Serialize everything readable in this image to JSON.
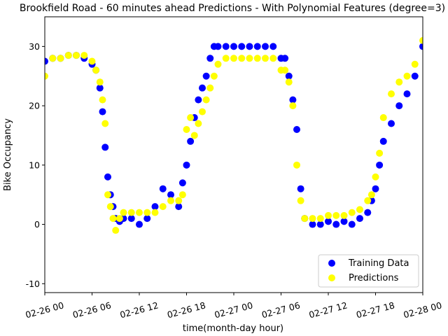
{
  "chart_data": {
    "type": "scatter",
    "title": "Brookfield Road - 60 minutes ahead Predictions - With Polynomial Features (degree=3)",
    "xlabel": "time(month-day hour)",
    "ylabel": "Bike Occupancy",
    "xlim": [
      "02-26 00",
      "02-28 00"
    ],
    "ylim": [
      -11.5,
      35
    ],
    "x_ticks": [
      "02-26 00",
      "02-26 06",
      "02-26 12",
      "02-26 18",
      "02-27 00",
      "02-27 06",
      "02-27 12",
      "02-27 18",
      "02-28 00"
    ],
    "y_ticks": [
      -10,
      0,
      10,
      20,
      30
    ],
    "legend_position": "lower-right",
    "colors": {
      "training": "#0000ff",
      "predictions": "#ffff00"
    },
    "series": [
      {
        "name": "Training Data",
        "color": "#0000ff",
        "x": [
          "02-26 00",
          "02-26 01",
          "02-26 02",
          "02-26 03",
          "02-26 04",
          "02-26 05",
          "02-26 06",
          "02-26 06:30",
          "02-26 07",
          "02-26 07:20",
          "02-26 07:40",
          "02-26 08",
          "02-26 08:20",
          "02-26 08:40",
          "02-26 09",
          "02-26 09:30",
          "02-26 10",
          "02-26 11",
          "02-26 12",
          "02-26 13",
          "02-26 14",
          "02-26 15",
          "02-26 16",
          "02-26 17",
          "02-26 17:30",
          "02-26 18",
          "02-26 18:30",
          "02-26 19",
          "02-26 19:30",
          "02-26 20",
          "02-26 20:30",
          "02-26 21",
          "02-26 21:30",
          "02-26 22",
          "02-26 23",
          "02-27 00",
          "02-27 01",
          "02-27 02",
          "02-27 03",
          "02-27 04",
          "02-27 05",
          "02-27 06",
          "02-27 06:30",
          "02-27 07",
          "02-27 07:30",
          "02-27 08",
          "02-27 08:30",
          "02-27 09",
          "02-27 10",
          "02-27 11",
          "02-27 12",
          "02-27 13",
          "02-27 14",
          "02-27 15",
          "02-27 16",
          "02-27 17",
          "02-27 17:30",
          "02-27 18",
          "02-27 18:30",
          "02-27 19",
          "02-27 20",
          "02-27 21",
          "02-27 22",
          "02-27 23",
          "02-28 00"
        ],
        "values": [
          27.5,
          28,
          28,
          28.5,
          28.5,
          28,
          27,
          26,
          23,
          19,
          13,
          8,
          5,
          3,
          1,
          0.5,
          1,
          1,
          0,
          1,
          3,
          6,
          5,
          3,
          7,
          10,
          14,
          18,
          21,
          23,
          25,
          28,
          30,
          30,
          30,
          30,
          30,
          30,
          30,
          30,
          30,
          28,
          28,
          25,
          21,
          16,
          6,
          1,
          0,
          0,
          0.5,
          0,
          0.5,
          0,
          1,
          2,
          4,
          6,
          10,
          14,
          17,
          20,
          22,
          25,
          30
        ]
      },
      {
        "name": "Predictions",
        "color": "#ffff00",
        "x": [
          "02-26 00",
          "02-26 01",
          "02-26 02",
          "02-26 03",
          "02-26 04",
          "02-26 05",
          "02-26 06",
          "02-26 06:30",
          "02-26 07",
          "02-26 07:20",
          "02-26 07:40",
          "02-26 08",
          "02-26 08:20",
          "02-26 08:40",
          "02-26 09",
          "02-26 09:30",
          "02-26 10",
          "02-26 11",
          "02-26 12",
          "02-26 13",
          "02-26 14",
          "02-26 15",
          "02-26 16",
          "02-26 17",
          "02-26 17:30",
          "02-26 18",
          "02-26 18:30",
          "02-26 19",
          "02-26 19:30",
          "02-26 20",
          "02-26 20:30",
          "02-26 21",
          "02-26 21:30",
          "02-26 22",
          "02-26 23",
          "02-27 00",
          "02-27 01",
          "02-27 02",
          "02-27 03",
          "02-27 04",
          "02-27 05",
          "02-27 06",
          "02-27 06:30",
          "02-27 07",
          "02-27 07:30",
          "02-27 08",
          "02-27 08:30",
          "02-27 09",
          "02-27 10",
          "02-27 11",
          "02-27 12",
          "02-27 13",
          "02-27 14",
          "02-27 15",
          "02-27 16",
          "02-27 17",
          "02-27 17:30",
          "02-27 18",
          "02-27 18:30",
          "02-27 19",
          "02-27 20",
          "02-27 21",
          "02-27 22",
          "02-27 23",
          "02-28 00"
        ],
        "values": [
          25,
          28,
          28,
          28.5,
          28.5,
          28.5,
          27.5,
          26,
          24,
          21,
          17,
          5,
          3,
          1,
          -1,
          1,
          2,
          2,
          2,
          2,
          2,
          3,
          4,
          4,
          5,
          16,
          18,
          15,
          17,
          19,
          21,
          23,
          25,
          27,
          28,
          28,
          28,
          28,
          28,
          28,
          28,
          26,
          26,
          24,
          20,
          10,
          4,
          1,
          1,
          1,
          1.5,
          1.5,
          1.5,
          2,
          2.5,
          4,
          5,
          8,
          12,
          18,
          22,
          24,
          25,
          27,
          31
        ]
      }
    ]
  }
}
